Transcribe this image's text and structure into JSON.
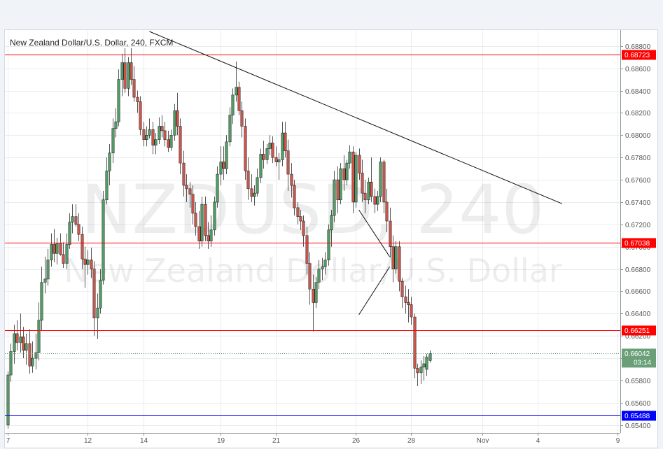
{
  "chart_data": {
    "type": "candlestick",
    "title": "New Zealand Dollar/U.S. Dollar, 240, FXCM",
    "watermark": {
      "symbol": "NZDUSD, 240",
      "name": "New Zealand Dollar/U.S. Dollar"
    },
    "x_ticks": [
      "7",
      "12",
      "14",
      "19",
      "21",
      "26",
      "28",
      "Nov",
      "4",
      "9"
    ],
    "y_ticks": [
      "0.68800",
      "0.68600",
      "0.68400",
      "0.68200",
      "0.68000",
      "0.67800",
      "0.67600",
      "0.67400",
      "0.67200",
      "0.67000",
      "0.66800",
      "0.66600",
      "0.66400",
      "0.66200",
      "0.66000",
      "0.65800",
      "0.65600",
      "0.65400"
    ],
    "ylim": [
      0.6538,
      0.6893
    ],
    "horizontal_levels": [
      {
        "label": "0.68723",
        "value": 0.68723,
        "color": "#ff0000"
      },
      {
        "label": "0.67038",
        "value": 0.67038,
        "color": "#ff0000"
      },
      {
        "label": "0.66251",
        "value": 0.66251,
        "color": "#ff0000"
      },
      {
        "label": "0.65488",
        "value": 0.65488,
        "color": "#0000ff"
      }
    ],
    "current_price": {
      "label": "0.66042",
      "value": 0.66042,
      "countdown": "03:14",
      "color": "#6a9f78"
    },
    "trendline": {
      "from": {
        "bar": 46,
        "price": 0.6893
      },
      "to": {
        "bar": 180,
        "price": 0.67385
      }
    },
    "wedge": [
      {
        "from": {
          "bar": 114,
          "price": 0.6733
        },
        "to": {
          "bar": 124,
          "price": 0.6691
        }
      },
      {
        "from": {
          "bar": 114,
          "price": 0.6639
        },
        "to": {
          "bar": 124,
          "price": 0.6682
        }
      }
    ],
    "colors": {
      "up": "#53a167",
      "down": "#d4564b",
      "outline": "#2b2b2b",
      "grid": "#e9ecef"
    },
    "ohlc": [
      [
        0.654,
        0.6588,
        0.6537,
        0.6585
      ],
      [
        0.6585,
        0.6613,
        0.6579,
        0.6606
      ],
      [
        0.6606,
        0.663,
        0.6595,
        0.6622
      ],
      [
        0.6622,
        0.6634,
        0.6607,
        0.6614
      ],
      [
        0.6614,
        0.664,
        0.6605,
        0.6619
      ],
      [
        0.6619,
        0.6628,
        0.66,
        0.6607
      ],
      [
        0.6607,
        0.6622,
        0.6594,
        0.6613
      ],
      [
        0.6613,
        0.6626,
        0.6586,
        0.6593
      ],
      [
        0.6593,
        0.6615,
        0.6587,
        0.66
      ],
      [
        0.66,
        0.6622,
        0.659,
        0.6605
      ],
      [
        0.6605,
        0.665,
        0.6598,
        0.6634
      ],
      [
        0.6634,
        0.6682,
        0.6625,
        0.6668
      ],
      [
        0.6668,
        0.6691,
        0.6658,
        0.6671
      ],
      [
        0.6671,
        0.6698,
        0.6665,
        0.6688
      ],
      [
        0.6688,
        0.6712,
        0.6682,
        0.6702
      ],
      [
        0.6702,
        0.6716,
        0.6686,
        0.6694
      ],
      [
        0.6694,
        0.6708,
        0.6684,
        0.6703
      ],
      [
        0.6703,
        0.6712,
        0.6692,
        0.6693
      ],
      [
        0.6693,
        0.6704,
        0.6681,
        0.6685
      ],
      [
        0.6685,
        0.6712,
        0.668,
        0.6702
      ],
      [
        0.6702,
        0.673,
        0.6698,
        0.6722
      ],
      [
        0.6722,
        0.6738,
        0.6712,
        0.6727
      ],
      [
        0.6727,
        0.6738,
        0.6718,
        0.672
      ],
      [
        0.672,
        0.673,
        0.6705,
        0.6711
      ],
      [
        0.6711,
        0.6718,
        0.668,
        0.6689
      ],
      [
        0.6689,
        0.67,
        0.6663,
        0.6684
      ],
      [
        0.6684,
        0.6697,
        0.6675,
        0.6688
      ],
      [
        0.6688,
        0.6699,
        0.6672,
        0.668
      ],
      [
        0.668,
        0.6687,
        0.662,
        0.6636
      ],
      [
        0.6636,
        0.6658,
        0.6617,
        0.6645
      ],
      [
        0.6645,
        0.668,
        0.664,
        0.667
      ],
      [
        0.667,
        0.675,
        0.6666,
        0.6742
      ],
      [
        0.6742,
        0.678,
        0.6738,
        0.6768
      ],
      [
        0.6768,
        0.6792,
        0.6755,
        0.6784
      ],
      [
        0.6784,
        0.6815,
        0.6775,
        0.6806
      ],
      [
        0.6806,
        0.6824,
        0.6798,
        0.6812
      ],
      [
        0.6812,
        0.6859,
        0.6808,
        0.685
      ],
      [
        0.685,
        0.6873,
        0.6835,
        0.6865
      ],
      [
        0.6865,
        0.6878,
        0.6838,
        0.6842
      ],
      [
        0.6842,
        0.687,
        0.6835,
        0.6865
      ],
      [
        0.6865,
        0.6878,
        0.6845,
        0.685
      ],
      [
        0.685,
        0.6862,
        0.683,
        0.6834
      ],
      [
        0.6834,
        0.684,
        0.682,
        0.683
      ],
      [
        0.683,
        0.6835,
        0.68,
        0.6805
      ],
      [
        0.6805,
        0.6812,
        0.679,
        0.6796
      ],
      [
        0.6796,
        0.6808,
        0.679,
        0.68
      ],
      [
        0.68,
        0.6815,
        0.6797,
        0.6805
      ],
      [
        0.6805,
        0.6812,
        0.6783,
        0.6791
      ],
      [
        0.6791,
        0.6802,
        0.6783,
        0.6796
      ],
      [
        0.6796,
        0.6816,
        0.6792,
        0.6808
      ],
      [
        0.6808,
        0.6818,
        0.6798,
        0.6804
      ],
      [
        0.6804,
        0.6812,
        0.679,
        0.6796
      ],
      [
        0.6796,
        0.6804,
        0.6785,
        0.6789
      ],
      [
        0.6789,
        0.6805,
        0.6786,
        0.68
      ],
      [
        0.68,
        0.6828,
        0.6795,
        0.6822
      ],
      [
        0.6822,
        0.6838,
        0.68,
        0.6808
      ],
      [
        0.6808,
        0.6815,
        0.6765,
        0.6775
      ],
      [
        0.6775,
        0.6786,
        0.6745,
        0.6755
      ],
      [
        0.6755,
        0.6765,
        0.674,
        0.6752
      ],
      [
        0.6752,
        0.6758,
        0.6735,
        0.6747
      ],
      [
        0.6747,
        0.6755,
        0.672,
        0.673
      ],
      [
        0.673,
        0.674,
        0.671,
        0.6718
      ],
      [
        0.6718,
        0.6732,
        0.6698,
        0.6705
      ],
      [
        0.6705,
        0.6745,
        0.67,
        0.6738
      ],
      [
        0.6738,
        0.6745,
        0.6705,
        0.671
      ],
      [
        0.671,
        0.6722,
        0.6698,
        0.6705
      ],
      [
        0.6705,
        0.6728,
        0.67,
        0.6715
      ],
      [
        0.6715,
        0.6745,
        0.671,
        0.674
      ],
      [
        0.674,
        0.6772,
        0.6735,
        0.6765
      ],
      [
        0.6765,
        0.679,
        0.6755,
        0.6776
      ],
      [
        0.6776,
        0.679,
        0.676,
        0.677
      ],
      [
        0.677,
        0.68,
        0.6765,
        0.6794
      ],
      [
        0.6794,
        0.6825,
        0.679,
        0.6818
      ],
      [
        0.6818,
        0.6842,
        0.681,
        0.6836
      ],
      [
        0.6836,
        0.6866,
        0.683,
        0.6843
      ],
      [
        0.6843,
        0.6848,
        0.6818,
        0.6822
      ],
      [
        0.6822,
        0.683,
        0.6798,
        0.6808
      ],
      [
        0.6808,
        0.6815,
        0.676,
        0.6768
      ],
      [
        0.6768,
        0.678,
        0.6742,
        0.6752
      ],
      [
        0.6752,
        0.6765,
        0.674,
        0.6745
      ],
      [
        0.6745,
        0.6755,
        0.6737,
        0.6748
      ],
      [
        0.6748,
        0.677,
        0.6745,
        0.6762
      ],
      [
        0.6762,
        0.6788,
        0.6757,
        0.6783
      ],
      [
        0.6783,
        0.6795,
        0.677,
        0.6778
      ],
      [
        0.6778,
        0.6792,
        0.6774,
        0.6788
      ],
      [
        0.6788,
        0.68,
        0.6782,
        0.6793
      ],
      [
        0.6793,
        0.6799,
        0.6775,
        0.678
      ],
      [
        0.678,
        0.679,
        0.6772,
        0.6776
      ],
      [
        0.6776,
        0.6784,
        0.676,
        0.6778
      ],
      [
        0.6778,
        0.6812,
        0.6772,
        0.6802
      ],
      [
        0.6802,
        0.6812,
        0.678,
        0.6786
      ],
      [
        0.6786,
        0.6796,
        0.675,
        0.6765
      ],
      [
        0.6765,
        0.6775,
        0.6744,
        0.6755
      ],
      [
        0.6755,
        0.676,
        0.6728,
        0.6735
      ],
      [
        0.6735,
        0.674,
        0.672,
        0.6727
      ],
      [
        0.6727,
        0.6733,
        0.6715,
        0.6723
      ],
      [
        0.6723,
        0.6728,
        0.67,
        0.671
      ],
      [
        0.671,
        0.6718,
        0.6675,
        0.6685
      ],
      [
        0.6685,
        0.6695,
        0.6648,
        0.6662
      ],
      [
        0.6662,
        0.6675,
        0.6624,
        0.665
      ],
      [
        0.665,
        0.6673,
        0.6645,
        0.6668
      ],
      [
        0.6668,
        0.6688,
        0.6662,
        0.668
      ],
      [
        0.668,
        0.669,
        0.667,
        0.6682
      ],
      [
        0.6682,
        0.6695,
        0.6675,
        0.6688
      ],
      [
        0.6688,
        0.672,
        0.6683,
        0.6715
      ],
      [
        0.6715,
        0.6733,
        0.67,
        0.6728
      ],
      [
        0.6728,
        0.6768,
        0.6722,
        0.676
      ],
      [
        0.676,
        0.6772,
        0.673,
        0.6742
      ],
      [
        0.6742,
        0.6775,
        0.6738,
        0.677
      ],
      [
        0.677,
        0.6782,
        0.675,
        0.676
      ],
      [
        0.676,
        0.6778,
        0.6755,
        0.6775
      ],
      [
        0.6775,
        0.6791,
        0.677,
        0.6785
      ],
      [
        0.6785,
        0.679,
        0.673,
        0.674
      ],
      [
        0.674,
        0.6785,
        0.6735,
        0.6782
      ],
      [
        0.6782,
        0.6788,
        0.676,
        0.6766
      ],
      [
        0.6766,
        0.6778,
        0.674,
        0.6748
      ],
      [
        0.6748,
        0.676,
        0.673,
        0.6742
      ],
      [
        0.6742,
        0.6762,
        0.6738,
        0.6758
      ],
      [
        0.6758,
        0.678,
        0.674,
        0.6745
      ],
      [
        0.6745,
        0.6752,
        0.673,
        0.6738
      ],
      [
        0.6738,
        0.675,
        0.6732,
        0.6745
      ],
      [
        0.6745,
        0.678,
        0.674,
        0.6776
      ],
      [
        0.6776,
        0.6778,
        0.673,
        0.674
      ],
      [
        0.674,
        0.6752,
        0.6713,
        0.6723
      ],
      [
        0.6723,
        0.6735,
        0.669,
        0.67
      ],
      [
        0.67,
        0.671,
        0.6668,
        0.668
      ],
      [
        0.668,
        0.6705,
        0.6676,
        0.67
      ],
      [
        0.67,
        0.6705,
        0.666,
        0.6669
      ],
      [
        0.6669,
        0.6672,
        0.6645,
        0.6655
      ],
      [
        0.6655,
        0.6665,
        0.664,
        0.665
      ],
      [
        0.665,
        0.6662,
        0.6632,
        0.6648
      ],
      [
        0.6648,
        0.6655,
        0.663,
        0.6637
      ],
      [
        0.6637,
        0.664,
        0.6582,
        0.6591
      ],
      [
        0.6591,
        0.6595,
        0.6575,
        0.6587
      ],
      [
        0.6587,
        0.6598,
        0.6577,
        0.6592
      ],
      [
        0.6592,
        0.6602,
        0.658,
        0.6595
      ],
      [
        0.659,
        0.6604,
        0.6584,
        0.6601
      ],
      [
        0.6598,
        0.6607,
        0.6596,
        0.6604
      ]
    ]
  }
}
